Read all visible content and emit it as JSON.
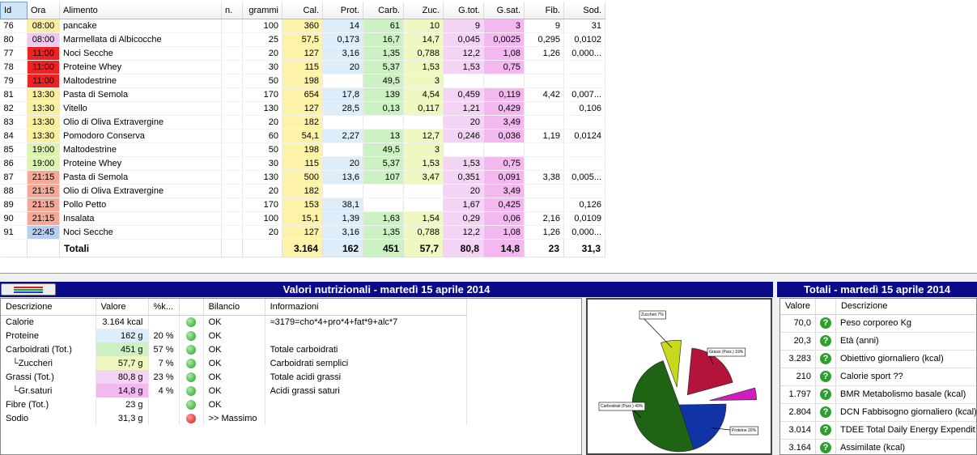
{
  "food_table": {
    "columns": [
      "Id",
      "Ora",
      "Alimento",
      "n.",
      "grammi",
      "Cal.",
      "Prot.",
      "Carb.",
      "Zuc.",
      "G.tot.",
      "G.sat.",
      "Fib.",
      "Sod."
    ],
    "rows": [
      [
        "76",
        "08:00",
        "pancake",
        "",
        "100",
        "360",
        "14",
        "61",
        "10",
        "9",
        "3",
        "9",
        "31"
      ],
      [
        "80",
        "08:00",
        "Marmellata di Albicocche",
        "",
        "25",
        "57,5",
        "0,173",
        "16,7",
        "14,7",
        "0,045",
        "0,0025",
        "0,295",
        "0,0102"
      ],
      [
        "77",
        "11:00",
        "Noci Secche",
        "",
        "20",
        "127",
        "3,16",
        "1,35",
        "0,788",
        "12,2",
        "1,08",
        "1,26",
        "0,000..."
      ],
      [
        "78",
        "11:00",
        "Proteine Whey",
        "",
        "30",
        "115",
        "20",
        "5,37",
        "1,53",
        "1,53",
        "0,75",
        "",
        ""
      ],
      [
        "79",
        "11:00",
        "Maltodestrine",
        "",
        "50",
        "198",
        "",
        "49,5",
        "3",
        "",
        "",
        "",
        ""
      ],
      [
        "81",
        "13:30",
        "Pasta di Semola",
        "",
        "170",
        "654",
        "17,8",
        "139",
        "4,54",
        "0,459",
        "0,119",
        "4,42",
        "0,007..."
      ],
      [
        "82",
        "13:30",
        "Vitello",
        "",
        "130",
        "127",
        "28,5",
        "0,13",
        "0,117",
        "1,21",
        "0,429",
        "",
        "0,106"
      ],
      [
        "83",
        "13:30",
        "Olio di Oliva Extravergine",
        "",
        "20",
        "182",
        "",
        "",
        "",
        "20",
        "3,49",
        "",
        ""
      ],
      [
        "84",
        "13:30",
        "Pomodoro Conserva",
        "",
        "60",
        "54,1",
        "2,27",
        "13",
        "12,7",
        "0,246",
        "0,036",
        "1,19",
        "0,0124"
      ],
      [
        "85",
        "19:00",
        "Maltodestrine",
        "",
        "50",
        "198",
        "",
        "49,5",
        "3",
        "",
        "",
        "",
        ""
      ],
      [
        "86",
        "19:00",
        "Proteine Whey",
        "",
        "30",
        "115",
        "20",
        "5,37",
        "1,53",
        "1,53",
        "0,75",
        "",
        ""
      ],
      [
        "87",
        "21:15",
        "Pasta di Semola",
        "",
        "130",
        "500",
        "13,6",
        "107",
        "3,47",
        "0,351",
        "0,091",
        "3,38",
        "0,005..."
      ],
      [
        "88",
        "21:15",
        "Olio di Oliva Extravergine",
        "",
        "20",
        "182",
        "",
        "",
        "",
        "20",
        "3,49",
        "",
        ""
      ],
      [
        "89",
        "21:15",
        "Pollo Petto",
        "",
        "170",
        "153",
        "38,1",
        "",
        "",
        "1,67",
        "0,425",
        "",
        "0,126"
      ],
      [
        "90",
        "21:15",
        "Insalata",
        "",
        "100",
        "15,1",
        "1,39",
        "1,63",
        "1,54",
        "0,29",
        "0,06",
        "2,16",
        "0,0109"
      ],
      [
        "91",
        "22:45",
        "Noci Secche",
        "",
        "20",
        "127",
        "3,16",
        "1,35",
        "0,788",
        "12,2",
        "1,08",
        "1,26",
        "0,000..."
      ]
    ],
    "hour_colors": [
      "#f8f0a0",
      "#f0c8f0",
      "#ee2222",
      "#ee2222",
      "#ee2222",
      "#f8f0a0",
      "#f8f0a0",
      "#f8f0a0",
      "#f8f0a0",
      "#ddf4b0",
      "#ddf4b0",
      "#f4a898",
      "#f4a898",
      "#f4a898",
      "#f4a898",
      "#b8cef0"
    ],
    "totals": [
      "",
      "",
      "Totali",
      "",
      "",
      "3.164",
      "162",
      "451",
      "57,7",
      "80,8",
      "14,8",
      "23",
      "31,3"
    ],
    "column_colors": {
      "Cal.": "#fdf3a8",
      "Prot.": "#ddeefa",
      "Carb.": "#ccf2c4",
      "Zuc.": "#eef8c0",
      "G.tot.": "#f4d4f4",
      "G.sat.": "#f4b8f0"
    }
  },
  "nutrition_panel": {
    "title": "Valori nutrizionali - martedì 15 aprile 2014",
    "columns": [
      "Descrizione",
      "Valore",
      "%k...",
      "",
      "Bilancio",
      "Informazioni"
    ],
    "rows": [
      {
        "desc": "Calorie",
        "val": "3.164 kcal",
        "pct": "",
        "status": "green",
        "bil": "OK",
        "info": "≈3179=cho*4+pro*4+fat*9+alc*7",
        "color": ""
      },
      {
        "desc": "Proteine",
        "val": "162 g",
        "pct": "20 %",
        "status": "green",
        "bil": "OK",
        "info": "",
        "color": "#ddeefa"
      },
      {
        "desc": "Carboidrati (Tot.)",
        "val": "451 g",
        "pct": "57 %",
        "status": "green",
        "bil": "OK",
        "info": "Totale carboidrati",
        "color": "#ccf2c4"
      },
      {
        "desc": "└Zuccheri",
        "val": "57,7 g",
        "pct": "7 %",
        "status": "green",
        "bil": "OK",
        "info": "Carboidrati semplici",
        "color": "#eef8c0"
      },
      {
        "desc": "Grassi (Tot.)",
        "val": "80,8 g",
        "pct": "23 %",
        "status": "green",
        "bil": "OK",
        "info": "Totale acidi grassi",
        "color": "#f4d4f4"
      },
      {
        "desc": "└Gr.saturi",
        "val": "14,8 g",
        "pct": "4 %",
        "status": "green",
        "bil": "OK",
        "info": "Acidi grassi saturi",
        "color": "#f4b8f0"
      },
      {
        "desc": "Fibre (Tot.)",
        "val": "23 g",
        "pct": "",
        "status": "green",
        "bil": "OK",
        "info": "",
        "color": ""
      },
      {
        "desc": "Sodio",
        "val": "31,3 g",
        "pct": "",
        "status": "red",
        "bil": ">> Massimo",
        "info": "",
        "color": ""
      }
    ]
  },
  "chart_data": {
    "type": "pie",
    "title": "",
    "slices": [
      {
        "label": "Zuccheri 7%",
        "value": 7,
        "color": "#c8d81a"
      },
      {
        "label": "Grassi (Parz.) 19%",
        "value": 19,
        "color": "#b3153a"
      },
      {
        "label": "",
        "value": 4,
        "color": "#d21cbe"
      },
      {
        "label": "Proteine 20%",
        "value": 20,
        "color": "#1034a6"
      },
      {
        "label": "Carboidrati (Parz.) 49%",
        "value": 49,
        "color": "#1e6414"
      }
    ]
  },
  "totals_panel": {
    "title": "Totali - martedì 15 aprile 2014",
    "columns": [
      "Valore",
      "",
      "Descrizione"
    ],
    "rows": [
      {
        "val": "70,0",
        "desc": "Peso corporeo Kg"
      },
      {
        "val": "20,3",
        "desc": "Età (anni)"
      },
      {
        "val": "3.283",
        "desc": "Obiettivo giornaliero (kcal)"
      },
      {
        "val": "210",
        "desc": "Calorie sport ??"
      },
      {
        "val": "1.797",
        "desc": "BMR Metabolismo basale (kcal)"
      },
      {
        "val": "2.804",
        "desc": "DCN Fabbisogno giornaliero (kcal)"
      },
      {
        "val": "3.014",
        "desc": "TDEE Total Daily Energy Expendit..."
      },
      {
        "val": "3.164",
        "desc": "Assimilate (kcal)"
      }
    ]
  }
}
